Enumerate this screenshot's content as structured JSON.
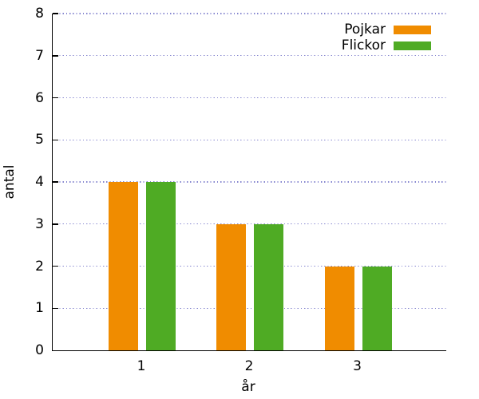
{
  "chart_data": {
    "type": "bar",
    "title": "",
    "categories": [
      "1",
      "2",
      "3"
    ],
    "series": [
      {
        "name": "Pojkar",
        "color": "#F08C00",
        "values": [
          4,
          3,
          2
        ]
      },
      {
        "name": "Flickor",
        "color": "#4FAB24",
        "values": [
          4,
          3,
          2
        ]
      }
    ],
    "xlabel": "år",
    "ylabel": "antal",
    "ylim": [
      0,
      8
    ],
    "yticks": [
      0,
      1,
      2,
      3,
      4,
      5,
      6,
      7,
      8
    ],
    "grid": {
      "horizontal": true,
      "style": "dotted",
      "color": "#8585CF"
    },
    "legend": {
      "position": "top-right"
    },
    "axis_color": "#000000",
    "background": "#FFFFFF"
  }
}
